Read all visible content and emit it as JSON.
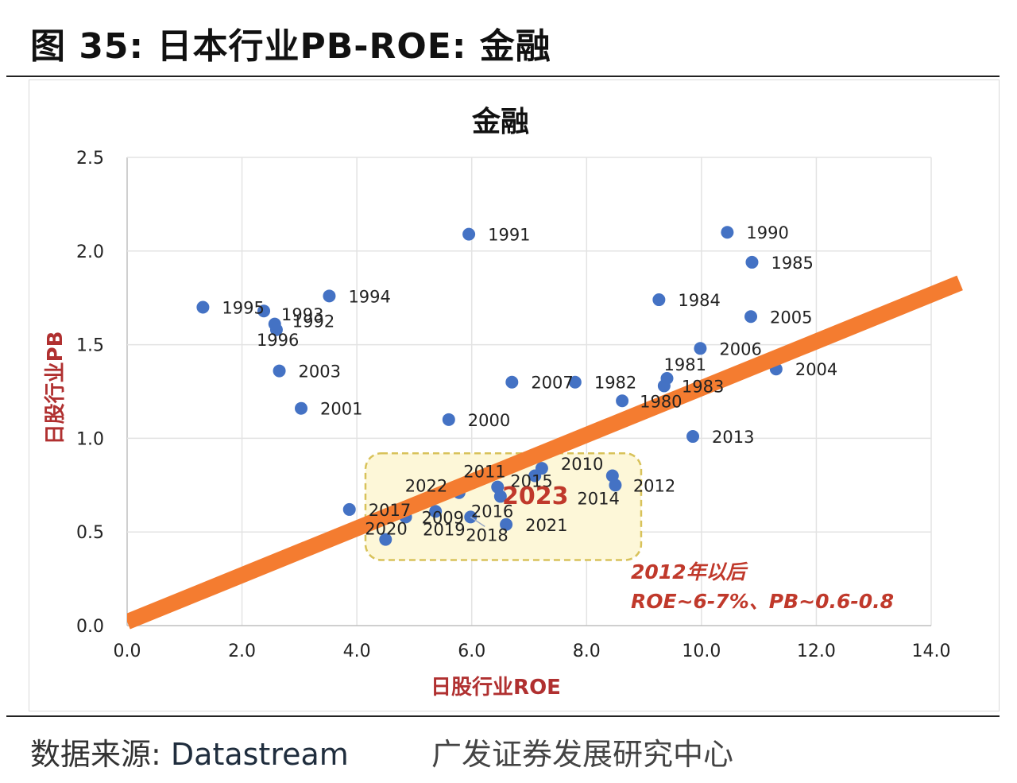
{
  "figure": {
    "title": "图 35: 日本行业PB-ROE: 金融",
    "source_label": "数据来源:",
    "source_value": "Datastream",
    "credit": "广发证券发展研究中心"
  },
  "chart_data": {
    "type": "scatter",
    "title": "金融",
    "xlabel": "日股行业ROE",
    "ylabel": "日股行业PB",
    "xlim": [
      0,
      14
    ],
    "ylim": [
      0,
      2.5
    ],
    "x_ticks": [
      "0.0",
      "2.0",
      "4.0",
      "6.0",
      "8.0",
      "10.0",
      "12.0",
      "14.0"
    ],
    "y_ticks": [
      "0.0",
      "0.5",
      "1.0",
      "1.5",
      "2.0",
      "2.5"
    ],
    "grid": true,
    "point_color": "#4472c4",
    "trend_color": "#f47c30",
    "trend_line": [
      [
        0,
        0.02
      ],
      [
        14.5,
        1.83
      ]
    ],
    "points": [
      {
        "label": "1990",
        "x": 10.45,
        "y": 2.1
      },
      {
        "label": "1991",
        "x": 5.95,
        "y": 2.09
      },
      {
        "label": "1985",
        "x": 10.88,
        "y": 1.94
      },
      {
        "label": "1995",
        "x": 1.32,
        "y": 1.7
      },
      {
        "label": "1993",
        "x": 2.38,
        "y": 1.68
      },
      {
        "label": "1994",
        "x": 3.52,
        "y": 1.76
      },
      {
        "label": "1992",
        "x": 2.57,
        "y": 1.61
      },
      {
        "label": "1996",
        "x": 2.6,
        "y": 1.58
      },
      {
        "label": "1984",
        "x": 9.26,
        "y": 1.74
      },
      {
        "label": "2005",
        "x": 10.86,
        "y": 1.65
      },
      {
        "label": "2006",
        "x": 9.98,
        "y": 1.48
      },
      {
        "label": "2004",
        "x": 11.3,
        "y": 1.37
      },
      {
        "label": "2003",
        "x": 2.65,
        "y": 1.36
      },
      {
        "label": "1981",
        "x": 9.4,
        "y": 1.32
      },
      {
        "label": "2007",
        "x": 6.7,
        "y": 1.3
      },
      {
        "label": "1982",
        "x": 7.8,
        "y": 1.3
      },
      {
        "label": "1983",
        "x": 9.35,
        "y": 1.28
      },
      {
        "label": "1980",
        "x": 8.62,
        "y": 1.2
      },
      {
        "label": "2001",
        "x": 3.03,
        "y": 1.16
      },
      {
        "label": "2000",
        "x": 5.6,
        "y": 1.1
      },
      {
        "label": "2013",
        "x": 9.85,
        "y": 1.01
      },
      {
        "label": "2010",
        "x": 7.22,
        "y": 0.84
      },
      {
        "label": "2011",
        "x": 7.1,
        "y": 0.8
      },
      {
        "label": "2015",
        "x": 6.45,
        "y": 0.74
      },
      {
        "label": "2012",
        "x": 8.45,
        "y": 0.8
      },
      {
        "label": "2014",
        "x": 8.5,
        "y": 0.75
      },
      {
        "label": "2022",
        "x": 5.78,
        "y": 0.71
      },
      {
        "label": "2016",
        "x": 6.5,
        "y": 0.69
      },
      {
        "label": "2019",
        "x": 5.37,
        "y": 0.61
      },
      {
        "label": "2018",
        "x": 5.98,
        "y": 0.58
      },
      {
        "label": "2021",
        "x": 6.6,
        "y": 0.54
      },
      {
        "label": "2017",
        "x": 3.87,
        "y": 0.62
      },
      {
        "label": "2020",
        "x": 4.5,
        "y": 0.46
      },
      {
        "label": "2009",
        "x": 4.85,
        "y": 0.58
      }
    ],
    "highlight": {
      "label": "2023",
      "color": "#c0392b"
    },
    "highlight_region": {
      "x_range": [
        4.15,
        8.95
      ],
      "y_range": [
        0.35,
        0.92
      ],
      "fill": "#fdf7d8",
      "stroke": "#d8c25a"
    },
    "annotations": [
      {
        "text": "2012年以后",
        "color": "#c0392b"
      },
      {
        "text": "ROE~6-7%、PB~0.6-0.8",
        "color": "#c0392b"
      }
    ]
  }
}
